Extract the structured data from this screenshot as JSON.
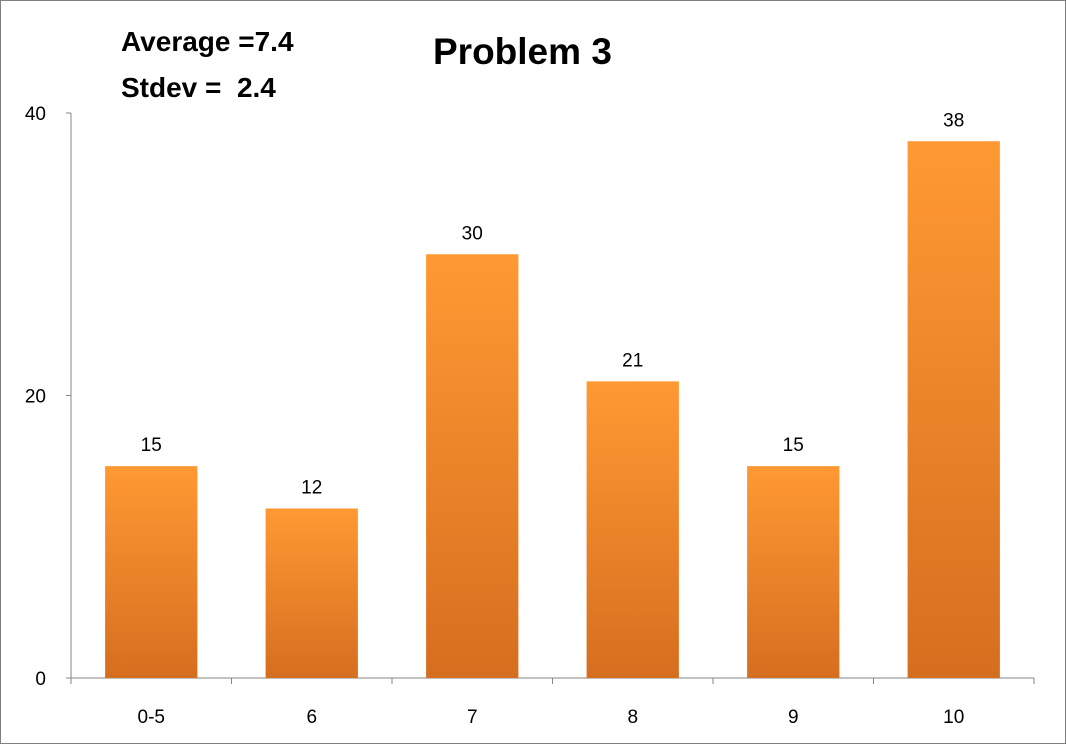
{
  "chart_data": {
    "type": "bar",
    "title": "Problem 3",
    "annotations": [
      "Average =7.4",
      "Stdev =  2.4"
    ],
    "categories": [
      "0-5",
      "6",
      "7",
      "8",
      "9",
      "10"
    ],
    "values": [
      15,
      12,
      30,
      21,
      15,
      38
    ],
    "data_labels": [
      "15",
      "12",
      "30",
      "21",
      "15",
      "38"
    ],
    "y_ticks": [
      "0",
      "20",
      "40"
    ],
    "ylim": [
      0,
      40
    ],
    "xlabel": "",
    "ylabel": "",
    "grid": false,
    "legend": "none",
    "colors": {
      "bar_top": "#FF9933",
      "bar_bottom": "#D66E1F",
      "axis": "#868686"
    }
  }
}
